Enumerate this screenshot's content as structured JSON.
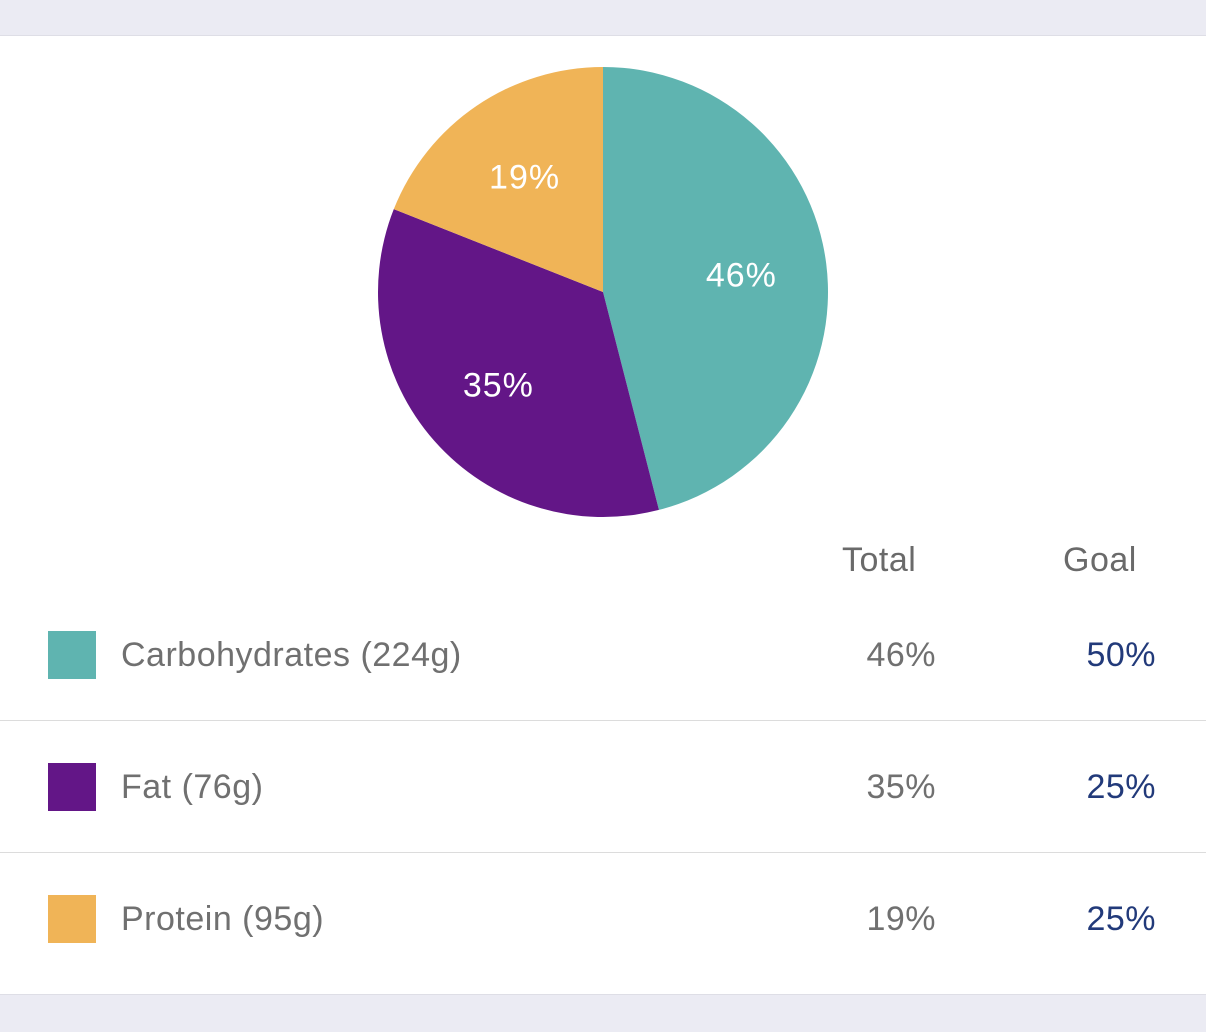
{
  "colors": {
    "carbohydrates": "#5fb4b0",
    "fat": "#631687",
    "protein": "#f0b457",
    "goal_text": "#223a7a",
    "label_text": "#707070"
  },
  "chart_data": {
    "type": "pie",
    "categories": [
      "Carbohydrates",
      "Fat",
      "Protein"
    ],
    "values": [
      46,
      35,
      19
    ],
    "data_labels": [
      "46%",
      "35%",
      "19%"
    ],
    "colors": [
      "#5fb4b0",
      "#631687",
      "#f0b457"
    ]
  },
  "table": {
    "header_total": "Total",
    "header_goal": "Goal",
    "rows": [
      {
        "name": "Carbohydrates (224g)",
        "total": "46%",
        "goal": "50%",
        "color": "#5fb4b0"
      },
      {
        "name": "Fat (76g)",
        "total": "35%",
        "goal": "25%",
        "color": "#631687"
      },
      {
        "name": "Protein (95g)",
        "total": "19%",
        "goal": "25%",
        "color": "#f0b457"
      }
    ]
  }
}
